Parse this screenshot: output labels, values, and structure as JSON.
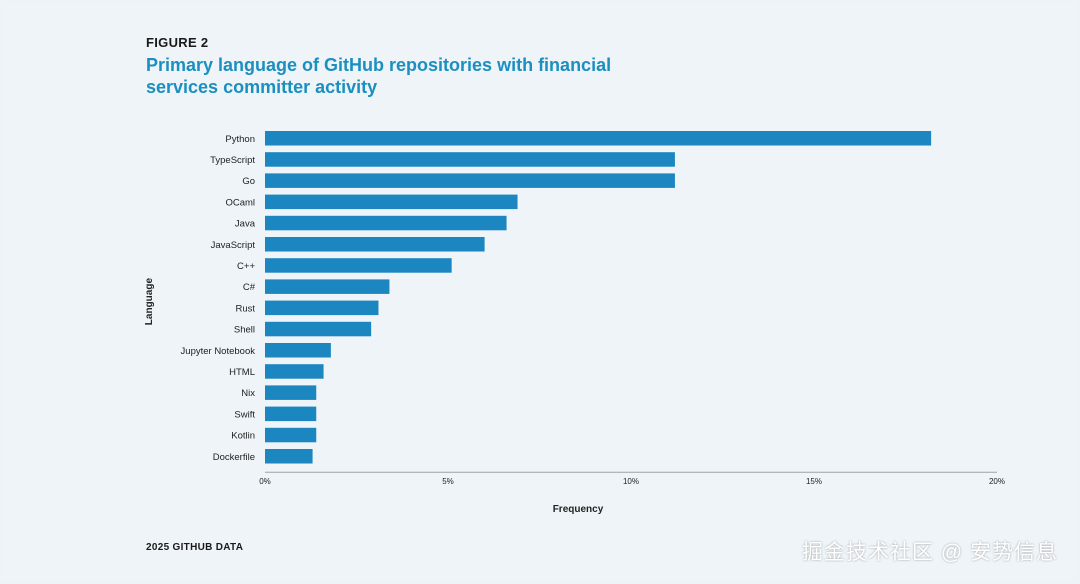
{
  "figure": {
    "label": "FIGURE 2",
    "title": "Primary language of GitHub repositories with financial services committer activity"
  },
  "footer": {
    "source": "2025 GITHUB DATA"
  },
  "watermark": "掘金技术社区 @ 安势信息",
  "colors": {
    "bar": "#1b86c0",
    "title": "#1b8fc0",
    "axis": "#9aa3ab"
  },
  "chart_data": {
    "type": "bar",
    "orientation": "horizontal",
    "title": "Primary language of GitHub repositories with financial services committer activity",
    "xlabel": "Frequency",
    "ylabel": "Language",
    "xlim": [
      0,
      20
    ],
    "xticks": [
      0,
      5,
      10,
      15,
      20
    ],
    "xtick_labels": [
      "0%",
      "5%",
      "10%",
      "15%",
      "20%"
    ],
    "grid": false,
    "categories": [
      "Python",
      "TypeScript",
      "Go",
      "OCaml",
      "Java",
      "JavaScript",
      "C++",
      "C#",
      "Rust",
      "Shell",
      "Jupyter Notebook",
      "HTML",
      "Nix",
      "Swift",
      "Kotlin",
      "Dockerfile"
    ],
    "values": [
      18.2,
      11.2,
      11.2,
      6.9,
      6.6,
      6.0,
      5.1,
      3.4,
      3.1,
      2.9,
      1.8,
      1.6,
      1.4,
      1.4,
      1.4,
      1.3
    ]
  }
}
